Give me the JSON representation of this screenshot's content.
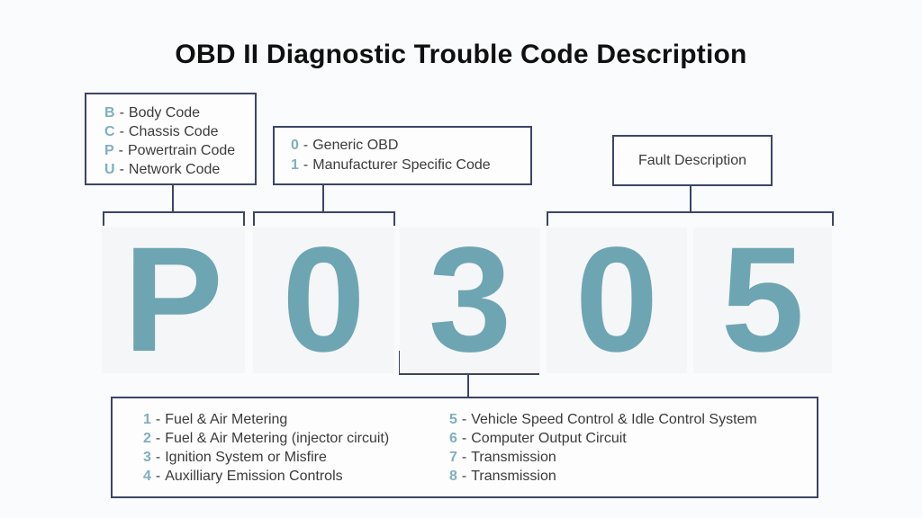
{
  "title": "OBD II Diagnostic Trouble Code Description",
  "ui": {
    "separator": "-"
  },
  "colors": {
    "page_bg": "#fafbfc",
    "card_bg": "#f4f6f7",
    "border_navy": "#3c4565",
    "big_character_teal": "#6ea5b2",
    "legend_key_teal": "#7fafbe",
    "body_text": "#3b3b3b",
    "title_text": "#101010"
  },
  "code_letter_legend": {
    "items": [
      {
        "key": "B",
        "label": "Body Code"
      },
      {
        "key": "C",
        "label": "Chassis Code"
      },
      {
        "key": "P",
        "label": "Powertrain Code"
      },
      {
        "key": "U",
        "label": "Network Code"
      }
    ]
  },
  "digit_type_legend": {
    "items": [
      {
        "key": "0",
        "label": "Generic OBD"
      },
      {
        "key": "1",
        "label": "Manufacturer Specific Code"
      }
    ]
  },
  "fault_description_box": {
    "label": "Fault Description"
  },
  "trouble_code": {
    "characters": [
      "P",
      "0",
      "3",
      "0",
      "5"
    ]
  },
  "fault_category_legend": {
    "left_column": [
      {
        "key": "1",
        "label": "Fuel & Air Metering"
      },
      {
        "key": "2",
        "label": "Fuel & Air Metering (injector circuit)"
      },
      {
        "key": "3",
        "label": "Ignition System or Misfire"
      },
      {
        "key": "4",
        "label": "Auxilliary Emission Controls"
      }
    ],
    "right_column": [
      {
        "key": "5",
        "label": "Vehicle Speed Control & Idle Control System"
      },
      {
        "key": "6",
        "label": "Computer Output Circuit"
      },
      {
        "key": "7",
        "label": "Transmission"
      },
      {
        "key": "8",
        "label": "Transmission"
      }
    ]
  }
}
